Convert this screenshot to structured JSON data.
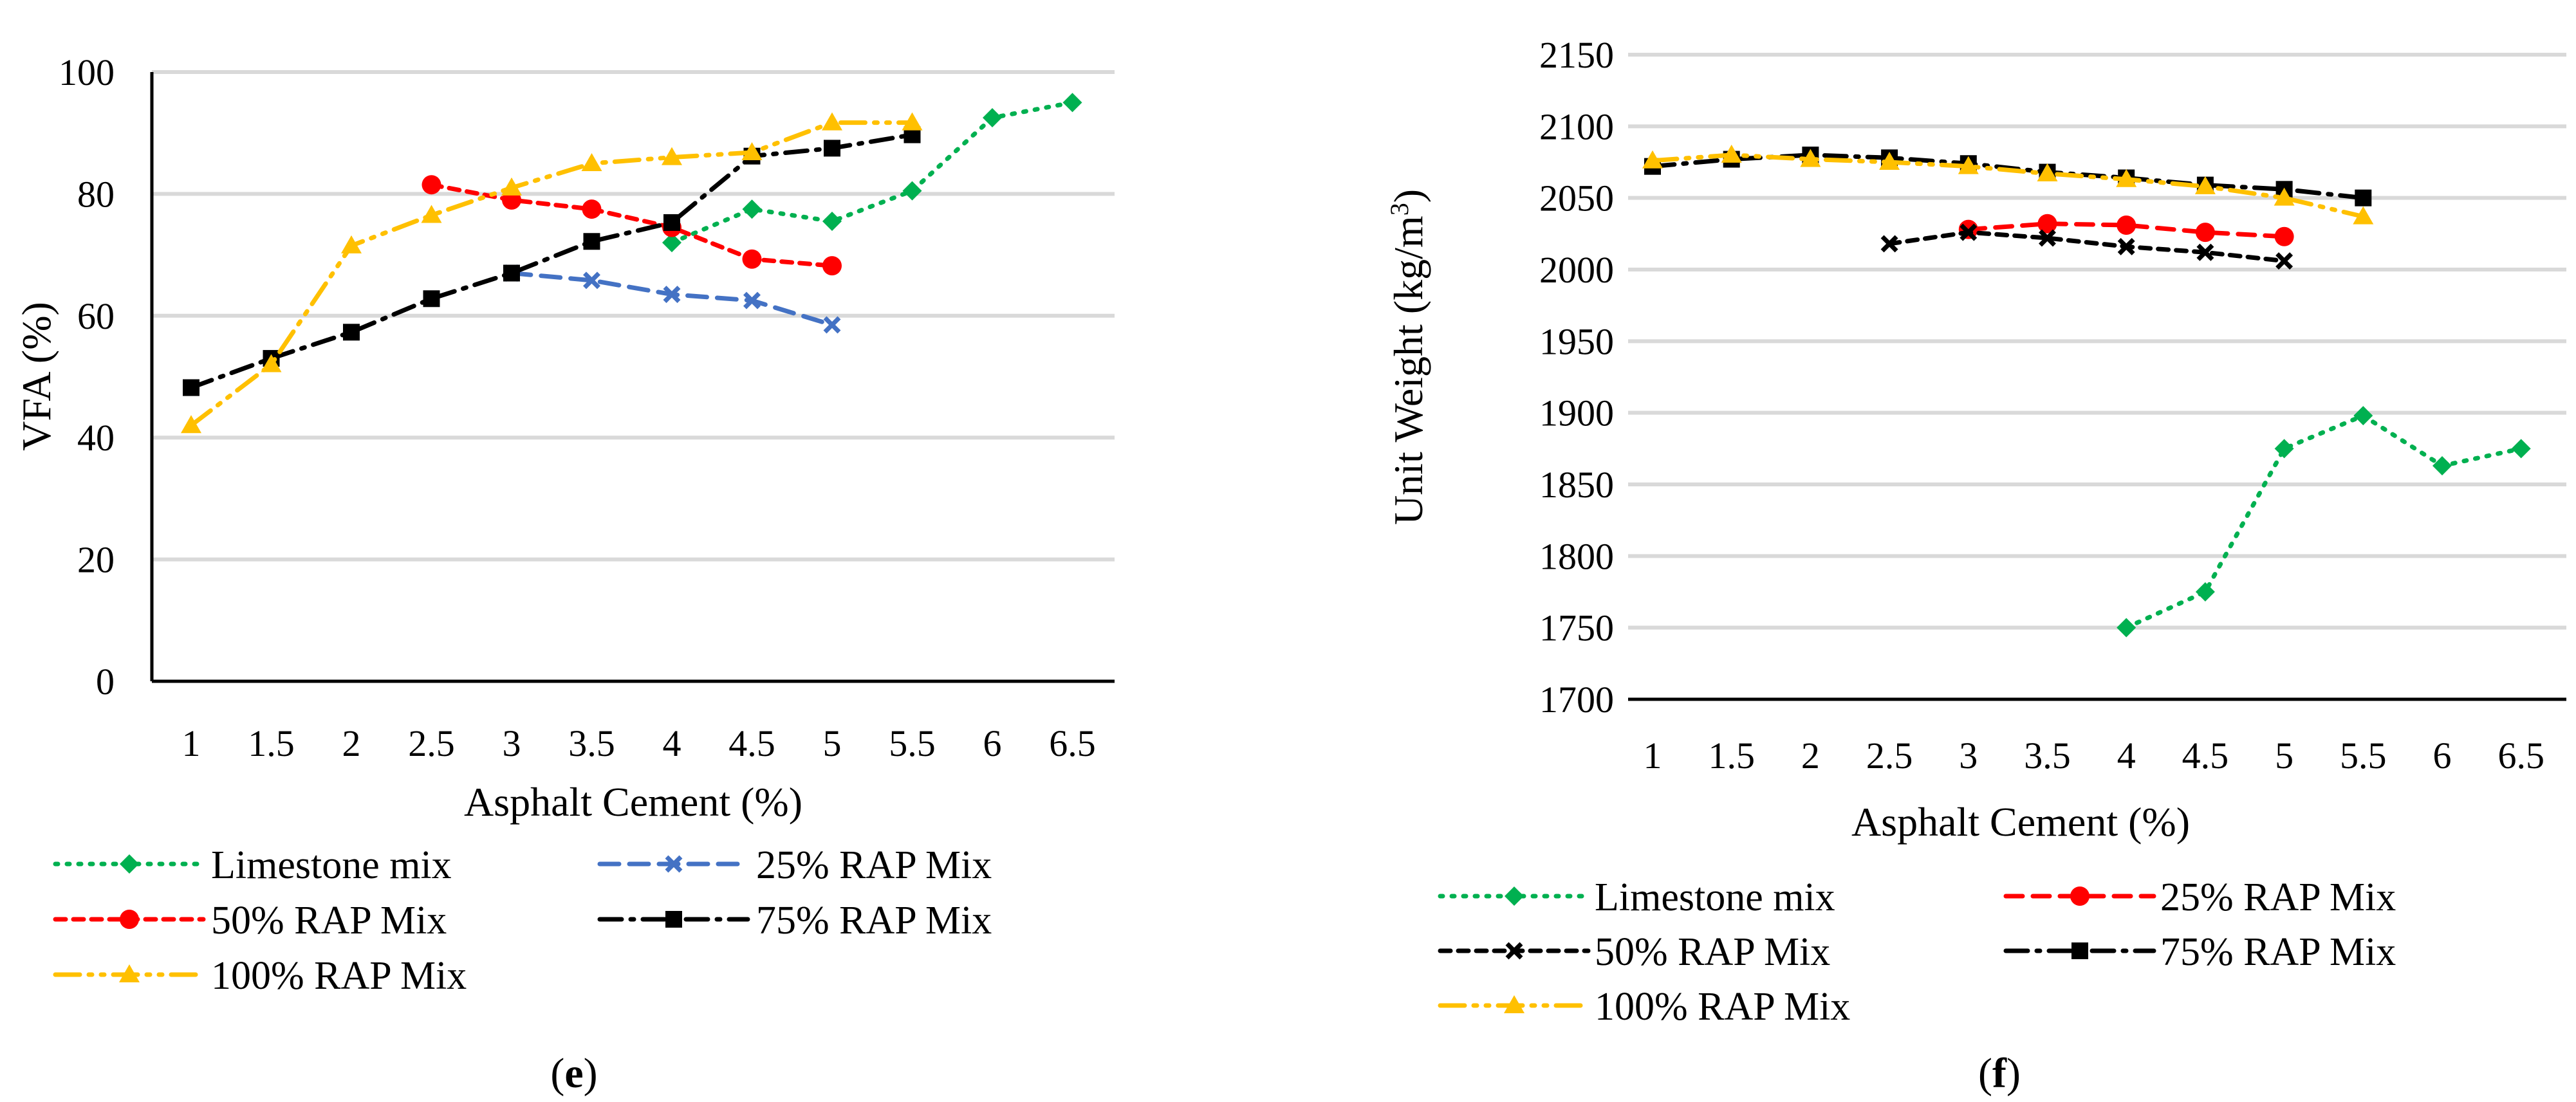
{
  "chart_data": [
    {
      "type": "line",
      "panel_label_open": "(",
      "panel_label_letter": "e",
      "panel_label_close": ")",
      "ylabel": "VFA (%)",
      "xlabel": "Asphalt Cement (%)",
      "ylim": [
        0,
        100
      ],
      "y_ticks": [
        "0",
        "20",
        "40",
        "60",
        "80",
        "100"
      ],
      "x_ticks": [
        "1",
        "1.5",
        "2",
        "2.5",
        "3",
        "3.5",
        "4",
        "4.5",
        "5",
        "5.5",
        "6",
        "6.5"
      ],
      "grid": true,
      "legend_position": "bottom",
      "series": [
        {
          "name": "Limestone mix",
          "style": "limestone",
          "color": "#00b050",
          "x": [
            4,
            4.5,
            5,
            5.5,
            6,
            6.5
          ],
          "values": [
            72,
            77.5,
            75.5,
            80.5,
            92.5,
            95
          ]
        },
        {
          "name": "25% RAP Mix",
          "style": "rap25e",
          "color": "#4472c4",
          "x": [
            3,
            3.5,
            4,
            4.5,
            5
          ],
          "values": [
            67,
            65.8,
            63.5,
            62.5,
            58.5
          ]
        },
        {
          "name": "50% RAP Mix",
          "style": "rap50e",
          "color": "#ff0000",
          "x": [
            2.5,
            3,
            3.5,
            4,
            4.5,
            5
          ],
          "values": [
            81.5,
            79,
            77.5,
            74.5,
            69.3,
            68.2
          ]
        },
        {
          "name": "75% RAP Mix",
          "style": "rap75",
          "color": "#000000",
          "x": [
            1,
            1.5,
            2,
            2.5,
            3,
            3.5,
            4,
            4.5,
            5,
            5.5
          ],
          "values": [
            48.2,
            53,
            57.3,
            62.8,
            67,
            72.2,
            75.3,
            86.2,
            87.5,
            89.7
          ]
        },
        {
          "name": "100% RAP Mix",
          "style": "rap100",
          "color": "#ffc000",
          "x": [
            1,
            1.5,
            2,
            2.5,
            3,
            3.5,
            4,
            4.5,
            5,
            5.5
          ],
          "values": [
            42,
            52,
            71.5,
            76.5,
            81,
            85,
            86,
            86.8,
            91.7,
            91.7
          ]
        }
      ]
    },
    {
      "type": "line",
      "panel_label_open": "(",
      "panel_label_letter": "f",
      "panel_label_close": ")",
      "ylabel_main": "Unit Weight (kg/m",
      "ylabel_sup": "3",
      "ylabel_end": ")",
      "xlabel": "Asphalt Cement (%)",
      "ylim": [
        1700,
        2150
      ],
      "y_ticks": [
        "1700",
        "1750",
        "1800",
        "1850",
        "1900",
        "1950",
        "2000",
        "2050",
        "2100",
        "2150"
      ],
      "x_ticks": [
        "1",
        "1.5",
        "2",
        "2.5",
        "3",
        "3.5",
        "4",
        "4.5",
        "5",
        "5.5",
        "6",
        "6.5"
      ],
      "grid": true,
      "legend_position": "bottom",
      "series": [
        {
          "name": "Limestone mix",
          "style": "limestone",
          "color": "#00b050",
          "x": [
            4,
            4.5,
            5,
            5.5,
            6,
            6.5
          ],
          "values": [
            1750,
            1775,
            1875,
            1898,
            1863,
            1875
          ]
        },
        {
          "name": "25% RAP Mix",
          "style": "rap25f",
          "color": "#ff0000",
          "x": [
            3,
            3.5,
            4,
            4.5,
            5
          ],
          "values": [
            2028,
            2032,
            2031,
            2026,
            2023
          ]
        },
        {
          "name": "50% RAP Mix",
          "style": "rap50f",
          "color": "#000000",
          "x": [
            2.5,
            3,
            3.5,
            4,
            4.5,
            5
          ],
          "values": [
            2018,
            2026,
            2022,
            2016,
            2012,
            2006
          ]
        },
        {
          "name": "75% RAP Mix",
          "style": "rap75",
          "color": "#000000",
          "x": [
            1,
            1.5,
            2,
            2.5,
            3,
            3.5,
            4,
            4.5,
            5,
            5.5
          ],
          "values": [
            2072,
            2077,
            2080,
            2078,
            2074,
            2068,
            2064,
            2059,
            2056,
            2050
          ]
        },
        {
          "name": "100% RAP Mix",
          "style": "rap100",
          "color": "#ffc000",
          "x": [
            1,
            1.5,
            2,
            2.5,
            3,
            3.5,
            4,
            4.5,
            5,
            5.5
          ],
          "values": [
            2076,
            2080,
            2077,
            2075,
            2072,
            2067,
            2063,
            2058,
            2050,
            2037
          ]
        }
      ]
    }
  ]
}
